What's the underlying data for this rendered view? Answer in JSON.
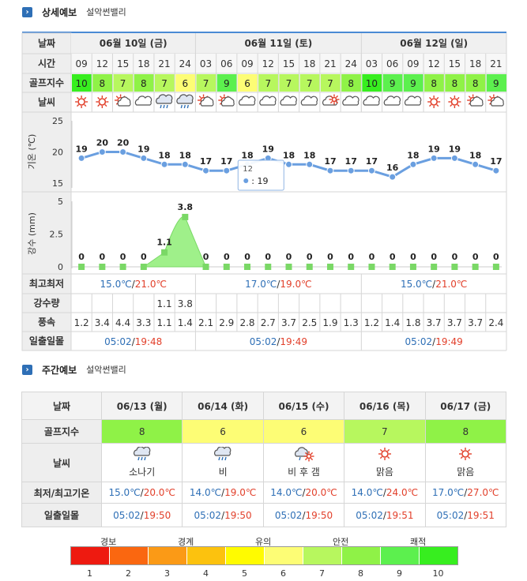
{
  "detailed": {
    "title": "상세예보",
    "location": "설악썬밸리",
    "row_labels": {
      "date": "날짜",
      "time": "시간",
      "golf": "골프지수",
      "weather": "날씨",
      "minmax": "최고최저",
      "rain": "강수량",
      "wind": "풍속",
      "sun": "일출일몰"
    },
    "days": [
      {
        "label": "06월 10일 (금)",
        "min": "15.0℃",
        "max": "21.0℃",
        "sunrise": "05:02",
        "sunset": "19:48"
      },
      {
        "label": "06월 11일 (토)",
        "min": "17.0℃",
        "max": "19.0℃",
        "sunrise": "05:02",
        "sunset": "19:49"
      },
      {
        "label": "06월 12일 (일)",
        "min": "15.0℃",
        "max": "21.0℃",
        "sunrise": "05:02",
        "sunset": "19:49"
      }
    ],
    "slots": [
      {
        "time": "09",
        "golf": "10",
        "icon": "sun-icon",
        "temp": 19,
        "precip": 0,
        "rain": "",
        "wind": "1.2"
      },
      {
        "time": "12",
        "golf": "8",
        "icon": "sun-icon",
        "temp": 20,
        "precip": 0,
        "rain": "",
        "wind": "3.4"
      },
      {
        "time": "15",
        "golf": "7",
        "icon": "sun-cloud-icon",
        "temp": 20,
        "precip": 0,
        "rain": "",
        "wind": "4.4"
      },
      {
        "time": "18",
        "golf": "8",
        "icon": "cloud-icon",
        "temp": 19,
        "precip": 0,
        "rain": "",
        "wind": "3.3"
      },
      {
        "time": "21",
        "golf": "7",
        "icon": "cloud-rain-icon",
        "temp": 18,
        "precip": 1.1,
        "rain": "1.1",
        "wind": "1.1"
      },
      {
        "time": "24",
        "golf": "6",
        "icon": "cloud-rain-icon",
        "temp": 18,
        "precip": 3.8,
        "rain": "3.8",
        "wind": "1.4"
      },
      {
        "time": "03",
        "golf": "7",
        "icon": "sun-cloud-icon",
        "temp": 17,
        "precip": 0,
        "rain": "",
        "wind": "2.1"
      },
      {
        "time": "06",
        "golf": "9",
        "icon": "sun-cloud-icon",
        "temp": 17,
        "precip": 0,
        "rain": "",
        "wind": "2.9"
      },
      {
        "time": "09",
        "golf": "6",
        "icon": "cloud-icon",
        "temp": 18,
        "precip": 0,
        "rain": "",
        "wind": "2.8"
      },
      {
        "time": "12",
        "golf": "7",
        "icon": "cloud-icon",
        "temp": 19,
        "precip": 0,
        "rain": "",
        "wind": "2.7"
      },
      {
        "time": "15",
        "golf": "7",
        "icon": "cloud-icon",
        "temp": 18,
        "precip": 0,
        "rain": "",
        "wind": "3.7"
      },
      {
        "time": "18",
        "golf": "7",
        "icon": "cloud-icon",
        "temp": 18,
        "precip": 0,
        "rain": "",
        "wind": "2.5"
      },
      {
        "time": "21",
        "golf": "7",
        "icon": "cloud-sun-icon",
        "temp": 17,
        "precip": 0,
        "rain": "",
        "wind": "1.9"
      },
      {
        "time": "24",
        "golf": "8",
        "icon": "cloud-icon",
        "temp": 17,
        "precip": 0,
        "rain": "",
        "wind": "1.3"
      },
      {
        "time": "03",
        "golf": "10",
        "icon": "cloud-icon",
        "temp": 17,
        "precip": 0,
        "rain": "",
        "wind": "1.2"
      },
      {
        "time": "06",
        "golf": "9",
        "icon": "cloud-icon",
        "temp": 16,
        "precip": 0,
        "rain": "",
        "wind": "1.4"
      },
      {
        "time": "09",
        "golf": "9",
        "icon": "cloud-icon",
        "temp": 18,
        "precip": 0,
        "rain": "",
        "wind": "1.8"
      },
      {
        "time": "12",
        "golf": "8",
        "icon": "sun-icon",
        "temp": 19,
        "precip": 0,
        "rain": "",
        "wind": "3.7"
      },
      {
        "time": "15",
        "golf": "8",
        "icon": "sun-icon",
        "temp": 19,
        "precip": 0,
        "rain": "",
        "wind": "3.7"
      },
      {
        "time": "18",
        "golf": "8",
        "icon": "sun-cloud-icon",
        "temp": 18,
        "precip": 0,
        "rain": "",
        "wind": "3.7"
      },
      {
        "time": "21",
        "golf": "9",
        "icon": "sun-cloud-icon",
        "temp": 17,
        "precip": 0,
        "rain": "",
        "wind": "2.4"
      }
    ],
    "tooltip": {
      "time": "12",
      "value": "19"
    }
  },
  "chart_data": [
    {
      "type": "line",
      "ylabel": "기온 (℃)",
      "y_ticks": [
        15,
        20,
        25
      ],
      "ylim": [
        15,
        25
      ],
      "values": [
        19,
        20,
        20,
        19,
        18,
        18,
        17,
        17,
        18,
        19,
        18,
        18,
        17,
        17,
        17,
        16,
        18,
        19,
        19,
        18,
        17
      ]
    },
    {
      "type": "area",
      "ylabel": "강수 (mm)",
      "y_ticks": [
        "0",
        "2.5",
        "5"
      ],
      "ylim": [
        0,
        5
      ],
      "values": [
        0,
        0,
        0,
        0,
        1.1,
        3.8,
        0,
        0,
        0,
        0,
        0,
        0,
        0,
        0,
        0,
        0,
        0,
        0,
        0,
        0,
        0
      ]
    }
  ],
  "weekly": {
    "title": "주간예보",
    "location": "설악썬밸리",
    "row_labels": {
      "date": "날짜",
      "golf": "골프지수",
      "weather": "날씨",
      "temp": "최저/최고기온",
      "sun": "일출일몰"
    },
    "days": [
      {
        "date": "06/13 (월)",
        "golf": "8",
        "icon": "cloud-rain-icon",
        "weather": "소나기",
        "min": "15.0℃",
        "max": "20.0℃",
        "sunrise": "05:02",
        "sunset": "19:50"
      },
      {
        "date": "06/14 (화)",
        "golf": "6",
        "icon": "cloud-rain-icon",
        "weather": "비",
        "min": "14.0℃",
        "max": "19.0℃",
        "sunrise": "05:02",
        "sunset": "19:50"
      },
      {
        "date": "06/15 (수)",
        "golf": "6",
        "icon": "rain-then-clear-icon",
        "weather": "비 후 갬",
        "min": "14.0℃",
        "max": "20.0℃",
        "sunrise": "05:02",
        "sunset": "19:50"
      },
      {
        "date": "06/16 (목)",
        "golf": "7",
        "icon": "sun-icon",
        "weather": "맑음",
        "min": "14.0℃",
        "max": "24.0℃",
        "sunrise": "05:02",
        "sunset": "19:51"
      },
      {
        "date": "06/17 (금)",
        "golf": "8",
        "icon": "sun-icon",
        "weather": "맑음",
        "min": "17.0℃",
        "max": "27.0℃",
        "sunrise": "05:02",
        "sunset": "19:51"
      }
    ]
  },
  "legend": {
    "labels": [
      "경보",
      "경계",
      "유의",
      "안전",
      "쾌적"
    ],
    "numbers": [
      "1",
      "2",
      "3",
      "4",
      "5",
      "6",
      "7",
      "8",
      "9",
      "10"
    ],
    "colors": [
      "#ee1a10",
      "#fa6710",
      "#fb9a16",
      "#fcc20e",
      "#fffb00",
      "#fdfd75",
      "#b7f75e",
      "#8ff247",
      "#5cf04e",
      "#37ee1f"
    ]
  }
}
